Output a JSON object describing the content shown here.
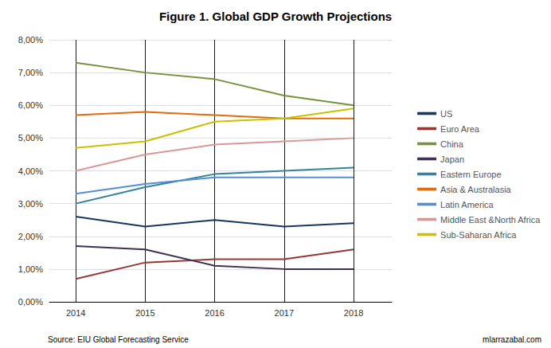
{
  "chart_data": {
    "type": "line",
    "title": "Figure 1. Global GDP Growth Projections",
    "x": [
      2014,
      2015,
      2016,
      2017,
      2018
    ],
    "xlim": [
      2013.62,
      2018.55
    ],
    "xticks": [
      2014,
      2015,
      2016,
      2017,
      2018
    ],
    "ylim": [
      0.0,
      0.08
    ],
    "yticks": [
      {
        "value": 0.0,
        "label": "0,00%"
      },
      {
        "value": 0.01,
        "label": "1,00%"
      },
      {
        "value": 0.02,
        "label": "2,00%"
      },
      {
        "value": 0.03,
        "label": "3,00%"
      },
      {
        "value": 0.04,
        "label": "4,00%"
      },
      {
        "value": 0.05,
        "label": "5,00%"
      },
      {
        "value": 0.06,
        "label": "6,00%"
      },
      {
        "value": 0.07,
        "label": "7,00%"
      },
      {
        "value": 0.08,
        "label": "8,00%"
      }
    ],
    "grid": true,
    "legend": "right",
    "series": [
      {
        "name": "US",
        "color": "#17375E",
        "values": [
          0.026,
          0.023,
          0.025,
          0.023,
          0.024
        ]
      },
      {
        "name": "Euro Area",
        "color": "#953735",
        "values": [
          0.007,
          0.012,
          0.013,
          0.013,
          0.016
        ]
      },
      {
        "name": "China",
        "color": "#76933C",
        "values": [
          0.073,
          0.07,
          0.068,
          0.063,
          0.06
        ]
      },
      {
        "name": "Japan",
        "color": "#403152",
        "values": [
          0.017,
          0.016,
          0.011,
          0.01,
          0.01
        ]
      },
      {
        "name": "Eastern Europe",
        "color": "#31849B",
        "values": [
          0.03,
          0.035,
          0.039,
          0.04,
          0.041
        ]
      },
      {
        "name": "Asia & Australasia",
        "color": "#E26B0A",
        "values": [
          0.057,
          0.058,
          0.057,
          0.056,
          0.056
        ]
      },
      {
        "name": "Latin America",
        "color": "#558ED5",
        "values": [
          0.033,
          0.036,
          0.038,
          0.038,
          0.038
        ]
      },
      {
        "name": "Middle East &North Africa",
        "color": "#D99795",
        "values": [
          0.04,
          0.045,
          0.048,
          0.049,
          0.05
        ]
      },
      {
        "name": "Sub-Saharan Africa",
        "color": "#CCC000",
        "values": [
          0.047,
          0.049,
          0.055,
          0.056,
          0.059
        ]
      }
    ],
    "annotations": [
      "Source: EIU Global Forecasting Service",
      "mlarrazabal.com"
    ]
  }
}
